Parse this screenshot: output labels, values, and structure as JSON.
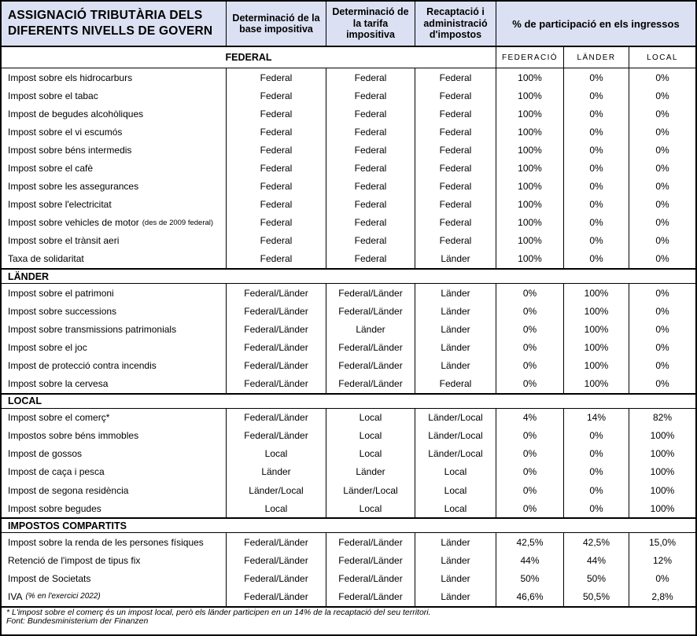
{
  "table": {
    "title": "ASSIGNACIÓ TRIBUTÀRIA DELS DIFERENTS NIVELLS DE GOVERN",
    "col_headers": {
      "base": "Determinació de la base impositiva",
      "tarifa": "Determinació de la tarifa impositiva",
      "recaptacio": "Recaptació i administració d'impostos",
      "participacio": "% de participació en els ingressos"
    },
    "participation_cols": {
      "federacio": "FEDERACIÓ",
      "lander": "LÄNDER",
      "local": "LOCAL"
    },
    "colors": {
      "header_bg": "#dbe1f2",
      "border": "#000000"
    },
    "sections": [
      {
        "label": "FEDERAL",
        "rows": [
          {
            "label": "Impost sobre els hidrocarburs",
            "values": [
              "Federal",
              "Federal",
              "Federal",
              "100%",
              "0%",
              "0%"
            ]
          },
          {
            "label": "Impost sobre el tabac",
            "values": [
              "Federal",
              "Federal",
              "Federal",
              "100%",
              "0%",
              "0%"
            ]
          },
          {
            "label": "Impost de begudes alcohòliques",
            "values": [
              "Federal",
              "Federal",
              "Federal",
              "100%",
              "0%",
              "0%"
            ]
          },
          {
            "label": "Impost sobre el vi escumós",
            "values": [
              "Federal",
              "Federal",
              "Federal",
              "100%",
              "0%",
              "0%"
            ]
          },
          {
            "label": "Impost sobre béns intermedis",
            "values": [
              "Federal",
              "Federal",
              "Federal",
              "100%",
              "0%",
              "0%"
            ]
          },
          {
            "label": "Impost sobre el cafè",
            "values": [
              "Federal",
              "Federal",
              "Federal",
              "100%",
              "0%",
              "0%"
            ]
          },
          {
            "label": "Impost sobre les assegurances",
            "values": [
              "Federal",
              "Federal",
              "Federal",
              "100%",
              "0%",
              "0%"
            ]
          },
          {
            "label": "Impost sobre l'electricitat",
            "values": [
              "Federal",
              "Federal",
              "Federal",
              "100%",
              "0%",
              "0%"
            ]
          },
          {
            "label": "Impost sobre vehicles de motor",
            "note": "(des de 2009 federal)",
            "values": [
              "Federal",
              "Federal",
              "Federal",
              "100%",
              "0%",
              "0%"
            ]
          },
          {
            "label": "Impost sobre el trànsit aeri",
            "values": [
              "Federal",
              "Federal",
              "Federal",
              "100%",
              "0%",
              "0%"
            ]
          },
          {
            "label": "Taxa de solidaritat",
            "values": [
              "Federal",
              "Federal",
              "Länder",
              "100%",
              "0%",
              "0%"
            ]
          }
        ]
      },
      {
        "label": "LÄNDER",
        "rows": [
          {
            "label": "Impost sobre el patrimoni",
            "values": [
              "Federal/Länder",
              "Federal/Länder",
              "Länder",
              "0%",
              "100%",
              "0%"
            ]
          },
          {
            "label": "Impost sobre successions",
            "values": [
              "Federal/Länder",
              "Federal/Länder",
              "Länder",
              "0%",
              "100%",
              "0%"
            ]
          },
          {
            "label": "Impost sobre transmissions patrimonials",
            "values": [
              "Federal/Länder",
              "Länder",
              "Länder",
              "0%",
              "100%",
              "0%"
            ]
          },
          {
            "label": "Impost sobre el joc",
            "values": [
              "Federal/Länder",
              "Federal/Länder",
              "Länder",
              "0%",
              "100%",
              "0%"
            ]
          },
          {
            "label": "Impost de protecció contra incendis",
            "values": [
              "Federal/Länder",
              "Federal/Länder",
              "Länder",
              "0%",
              "100%",
              "0%"
            ]
          },
          {
            "label": "Impost sobre la cervesa",
            "values": [
              "Federal/Länder",
              "Federal/Länder",
              "Federal",
              "0%",
              "100%",
              "0%"
            ]
          }
        ]
      },
      {
        "label": "LOCAL",
        "rows": [
          {
            "label": "Impost sobre el comerç*",
            "values": [
              "Federal/Länder",
              "Local",
              "Länder/Local",
              "4%",
              "14%",
              "82%"
            ]
          },
          {
            "label": "Impostos sobre béns immobles",
            "values": [
              "Federal/Länder",
              "Local",
              "Länder/Local",
              "0%",
              "0%",
              "100%"
            ]
          },
          {
            "label": "Impost de gossos",
            "values": [
              "Local",
              "Local",
              "Länder/Local",
              "0%",
              "0%",
              "100%"
            ]
          },
          {
            "label": "Impost de caça i pesca",
            "values": [
              "Länder",
              "Länder",
              "Local",
              "0%",
              "0%",
              "100%"
            ]
          },
          {
            "label": "Impost de segona residència",
            "values": [
              "Länder/Local",
              "Länder/Local",
              "Local",
              "0%",
              "0%",
              "100%"
            ]
          },
          {
            "label": "Impost sobre begudes",
            "values": [
              "Local",
              "Local",
              "Local",
              "0%",
              "0%",
              "100%"
            ]
          }
        ]
      },
      {
        "label": "IMPOSTOS COMPARTITS",
        "rows": [
          {
            "label": "Impost sobre la renda de les persones físiques",
            "values": [
              "Federal/Länder",
              "Federal/Länder",
              "Länder",
              "42,5%",
              "42,5%",
              "15,0%"
            ]
          },
          {
            "label": "Retenció de l'impost de tipus fix",
            "values": [
              "Federal/Länder",
              "Federal/Länder",
              "Länder",
              "44%",
              "44%",
              "12%"
            ]
          },
          {
            "label": "Impost de Societats",
            "values": [
              "Federal/Länder",
              "Federal/Länder",
              "Länder",
              "50%",
              "50%",
              "0%"
            ]
          },
          {
            "label": "IVA",
            "note": "(% en l'exercici 2022)",
            "note_italic": true,
            "values": [
              "Federal/Länder",
              "Federal/Länder",
              "Länder",
              "46,6%",
              "50,5%",
              "2,8%"
            ]
          }
        ]
      }
    ],
    "footnotes": [
      "* L'impost sobre el comerç és un impost local, però els länder participen en un 14% de la recaptació del seu territori.",
      "Font: Bundesministerium der Finanzen"
    ]
  }
}
